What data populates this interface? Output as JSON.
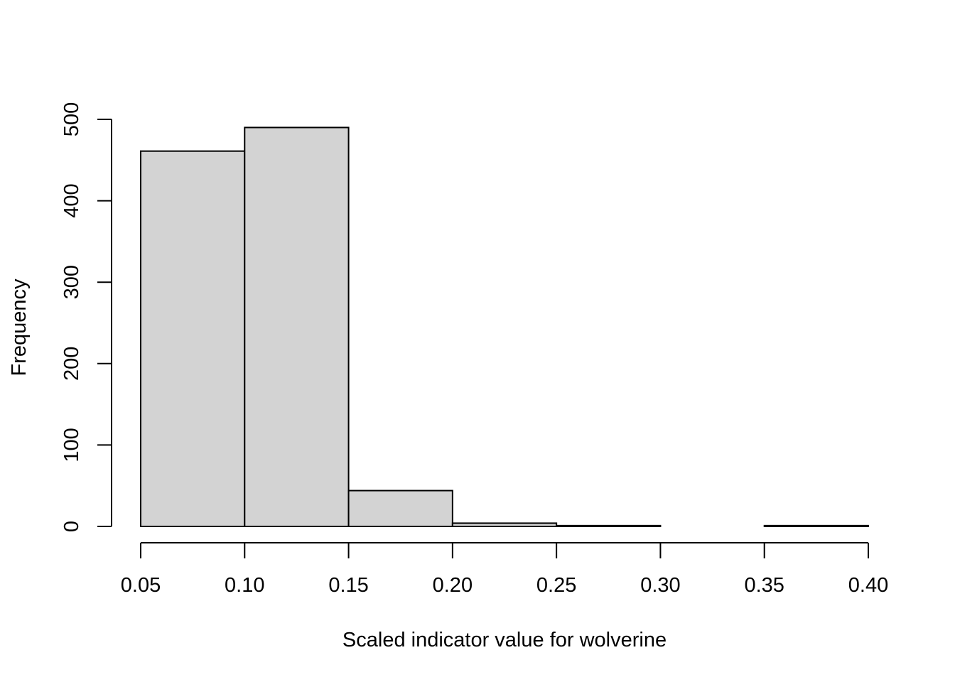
{
  "chart_data": {
    "type": "bar",
    "title": "",
    "xlabel": "Scaled indicator value for wolverine",
    "ylabel": "Frequency",
    "bins": [
      {
        "x0": 0.05,
        "x1": 0.1,
        "count": 461
      },
      {
        "x0": 0.1,
        "x1": 0.15,
        "count": 490
      },
      {
        "x0": 0.15,
        "x1": 0.2,
        "count": 44
      },
      {
        "x0": 0.2,
        "x1": 0.25,
        "count": 4
      },
      {
        "x0": 0.25,
        "x1": 0.3,
        "count": 1
      },
      {
        "x0": 0.3,
        "x1": 0.35,
        "count": 0
      },
      {
        "x0": 0.35,
        "x1": 0.4,
        "count": 1
      }
    ],
    "xlim": [
      0.05,
      0.4
    ],
    "ylim": [
      0,
      500
    ],
    "x_ticks": [
      "0.05",
      "0.10",
      "0.15",
      "0.20",
      "0.25",
      "0.30",
      "0.35",
      "0.40"
    ],
    "y_ticks": [
      "0",
      "100",
      "200",
      "300",
      "400",
      "500"
    ],
    "bar_fill": "#d3d3d3",
    "bar_stroke": "#000000",
    "grid": false,
    "legend": "none"
  }
}
